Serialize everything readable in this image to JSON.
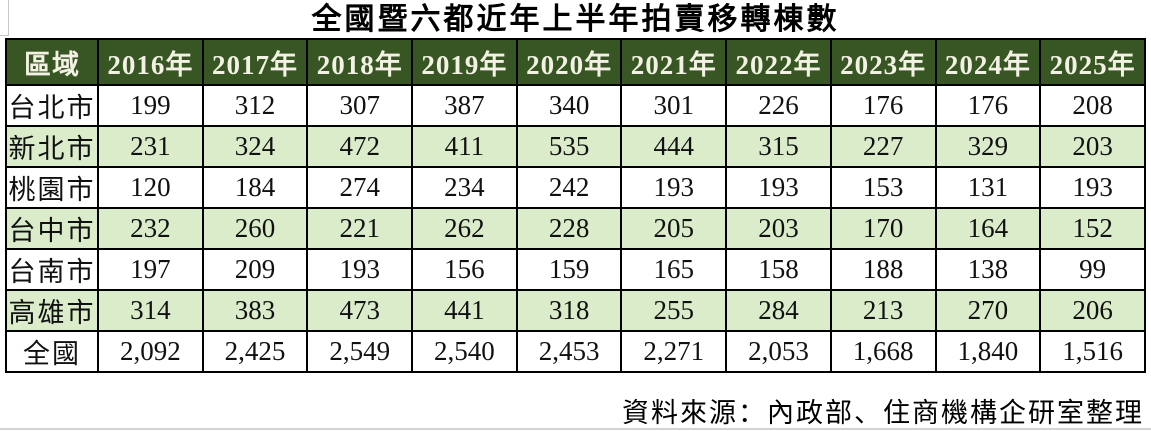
{
  "title": "全國暨六都近年上半年拍賣移轉棟數",
  "source_note": "資料來源：內政部、住商機構企研室整理",
  "colors": {
    "header_bg": "#375623",
    "header_text": "#f2f1e3",
    "alt_row_bg": "#dbeccb",
    "border": "#000000"
  },
  "chart_data": {
    "type": "table",
    "title": "全國暨六都近年上半年拍賣移轉棟數",
    "columns": [
      "區域",
      "2016年",
      "2017年",
      "2018年",
      "2019年",
      "2020年",
      "2021年",
      "2022年",
      "2023年",
      "2024年",
      "2025年"
    ],
    "rows": [
      {
        "label": "台北市",
        "values": [
          "199",
          "312",
          "307",
          "387",
          "340",
          "301",
          "226",
          "176",
          "176",
          "208"
        ]
      },
      {
        "label": "新北市",
        "values": [
          "231",
          "324",
          "472",
          "411",
          "535",
          "444",
          "315",
          "227",
          "329",
          "203"
        ]
      },
      {
        "label": "桃園市",
        "values": [
          "120",
          "184",
          "274",
          "234",
          "242",
          "193",
          "193",
          "153",
          "131",
          "193"
        ]
      },
      {
        "label": "台中市",
        "values": [
          "232",
          "260",
          "221",
          "262",
          "228",
          "205",
          "203",
          "170",
          "164",
          "152"
        ]
      },
      {
        "label": "台南市",
        "values": [
          "197",
          "209",
          "193",
          "156",
          "159",
          "165",
          "158",
          "188",
          "138",
          "99"
        ]
      },
      {
        "label": "高雄市",
        "values": [
          "314",
          "383",
          "473",
          "441",
          "318",
          "255",
          "284",
          "213",
          "270",
          "206"
        ]
      },
      {
        "label": "全國",
        "values": [
          "2,092",
          "2,425",
          "2,549",
          "2,540",
          "2,453",
          "2,271",
          "2,053",
          "1,668",
          "1,840",
          "1,516"
        ]
      }
    ],
    "source": "資料來源：內政部、住商機構企研室整理",
    "layout": {
      "alternating_row_shading": true,
      "first_data_row_unshaded": true
    }
  }
}
